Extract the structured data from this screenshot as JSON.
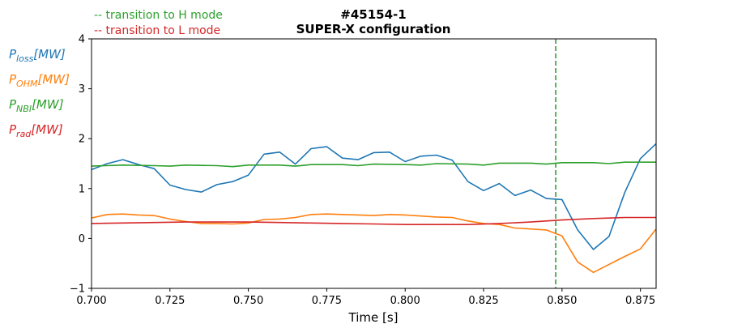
{
  "chart_data": {
    "type": "line",
    "title_line1": "#45154-1",
    "title_line2": "SUPER-X configuration",
    "xlabel": "Time [s]",
    "ylabel": "",
    "xlim": [
      0.7,
      0.88
    ],
    "ylim": [
      -1,
      4
    ],
    "x_ticks": [
      "0.700",
      "0.725",
      "0.750",
      "0.775",
      "0.800",
      "0.825",
      "0.850",
      "0.875"
    ],
    "y_ticks": [
      "−1",
      "0",
      "1",
      "2",
      "3",
      "4"
    ],
    "grid": false,
    "annotations": {
      "h_mode": "-- transition to H mode",
      "l_mode": "-- transition to L mode"
    },
    "h_mode_transition_x": 0.848,
    "legend": [
      {
        "base": "P",
        "sub": "loss",
        "unit": "[MW]",
        "color": "#1f77b4"
      },
      {
        "base": "P",
        "sub": "OHM",
        "unit": "[MW]",
        "color": "#ff7f0e"
      },
      {
        "base": "P",
        "sub": "NBI",
        "unit": "[MW]",
        "color": "#2ca02c"
      },
      {
        "base": "P",
        "sub": "rad",
        "unit": "[MW]",
        "color": "#d62728"
      }
    ],
    "series": [
      {
        "color": "#1f77b4",
        "points": [
          [
            0.7,
            1.38
          ],
          [
            0.705,
            1.5
          ],
          [
            0.71,
            1.58
          ],
          [
            0.715,
            1.48
          ],
          [
            0.72,
            1.4
          ],
          [
            0.725,
            1.07
          ],
          [
            0.73,
            0.98
          ],
          [
            0.735,
            0.93
          ],
          [
            0.74,
            1.08
          ],
          [
            0.745,
            1.14
          ],
          [
            0.75,
            1.27
          ],
          [
            0.755,
            1.69
          ],
          [
            0.76,
            1.73
          ],
          [
            0.765,
            1.49
          ],
          [
            0.77,
            1.8
          ],
          [
            0.775,
            1.84
          ],
          [
            0.78,
            1.61
          ],
          [
            0.785,
            1.58
          ],
          [
            0.79,
            1.72
          ],
          [
            0.795,
            1.73
          ],
          [
            0.8,
            1.54
          ],
          [
            0.805,
            1.65
          ],
          [
            0.81,
            1.67
          ],
          [
            0.815,
            1.57
          ],
          [
            0.82,
            1.14
          ],
          [
            0.825,
            0.96
          ],
          [
            0.83,
            1.1
          ],
          [
            0.835,
            0.86
          ],
          [
            0.84,
            0.97
          ],
          [
            0.845,
            0.8
          ],
          [
            0.85,
            0.78
          ],
          [
            0.855,
            0.17
          ],
          [
            0.86,
            -0.22
          ],
          [
            0.865,
            0.04
          ],
          [
            0.87,
            0.92
          ],
          [
            0.875,
            1.6
          ],
          [
            0.88,
            1.9
          ],
          [
            0.882,
            2.1
          ]
        ]
      },
      {
        "color": "#ff7f0e",
        "points": [
          [
            0.7,
            0.41
          ],
          [
            0.705,
            0.48
          ],
          [
            0.71,
            0.49
          ],
          [
            0.715,
            0.47
          ],
          [
            0.72,
            0.46
          ],
          [
            0.725,
            0.39
          ],
          [
            0.73,
            0.34
          ],
          [
            0.735,
            0.3
          ],
          [
            0.74,
            0.3
          ],
          [
            0.745,
            0.29
          ],
          [
            0.75,
            0.31
          ],
          [
            0.755,
            0.38
          ],
          [
            0.76,
            0.39
          ],
          [
            0.765,
            0.42
          ],
          [
            0.77,
            0.48
          ],
          [
            0.775,
            0.49
          ],
          [
            0.78,
            0.48
          ],
          [
            0.785,
            0.47
          ],
          [
            0.79,
            0.46
          ],
          [
            0.795,
            0.48
          ],
          [
            0.8,
            0.47
          ],
          [
            0.805,
            0.45
          ],
          [
            0.81,
            0.43
          ],
          [
            0.815,
            0.42
          ],
          [
            0.82,
            0.35
          ],
          [
            0.825,
            0.3
          ],
          [
            0.83,
            0.28
          ],
          [
            0.835,
            0.21
          ],
          [
            0.84,
            0.19
          ],
          [
            0.845,
            0.17
          ],
          [
            0.85,
            0.05
          ],
          [
            0.855,
            -0.47
          ],
          [
            0.86,
            -0.68
          ],
          [
            0.865,
            -0.52
          ],
          [
            0.87,
            -0.36
          ],
          [
            0.875,
            -0.21
          ],
          [
            0.88,
            0.19
          ]
        ]
      },
      {
        "color": "#2ca02c",
        "points": [
          [
            0.7,
            1.45
          ],
          [
            0.71,
            1.47
          ],
          [
            0.72,
            1.46
          ],
          [
            0.725,
            1.45
          ],
          [
            0.73,
            1.47
          ],
          [
            0.74,
            1.46
          ],
          [
            0.745,
            1.44
          ],
          [
            0.75,
            1.47
          ],
          [
            0.76,
            1.47
          ],
          [
            0.765,
            1.45
          ],
          [
            0.77,
            1.48
          ],
          [
            0.78,
            1.48
          ],
          [
            0.785,
            1.46
          ],
          [
            0.79,
            1.49
          ],
          [
            0.8,
            1.48
          ],
          [
            0.805,
            1.47
          ],
          [
            0.81,
            1.5
          ],
          [
            0.82,
            1.49
          ],
          [
            0.825,
            1.47
          ],
          [
            0.83,
            1.51
          ],
          [
            0.84,
            1.51
          ],
          [
            0.845,
            1.49
          ],
          [
            0.85,
            1.52
          ],
          [
            0.86,
            1.52
          ],
          [
            0.865,
            1.5
          ],
          [
            0.87,
            1.53
          ],
          [
            0.88,
            1.53
          ]
        ]
      },
      {
        "color": "#d62728",
        "points": [
          [
            0.7,
            0.3
          ],
          [
            0.71,
            0.31
          ],
          [
            0.72,
            0.32
          ],
          [
            0.73,
            0.33
          ],
          [
            0.74,
            0.33
          ],
          [
            0.75,
            0.33
          ],
          [
            0.76,
            0.32
          ],
          [
            0.77,
            0.31
          ],
          [
            0.78,
            0.3
          ],
          [
            0.79,
            0.29
          ],
          [
            0.8,
            0.28
          ],
          [
            0.81,
            0.28
          ],
          [
            0.82,
            0.28
          ],
          [
            0.83,
            0.3
          ],
          [
            0.84,
            0.33
          ],
          [
            0.85,
            0.37
          ],
          [
            0.86,
            0.4
          ],
          [
            0.87,
            0.42
          ],
          [
            0.88,
            0.42
          ]
        ]
      }
    ]
  }
}
